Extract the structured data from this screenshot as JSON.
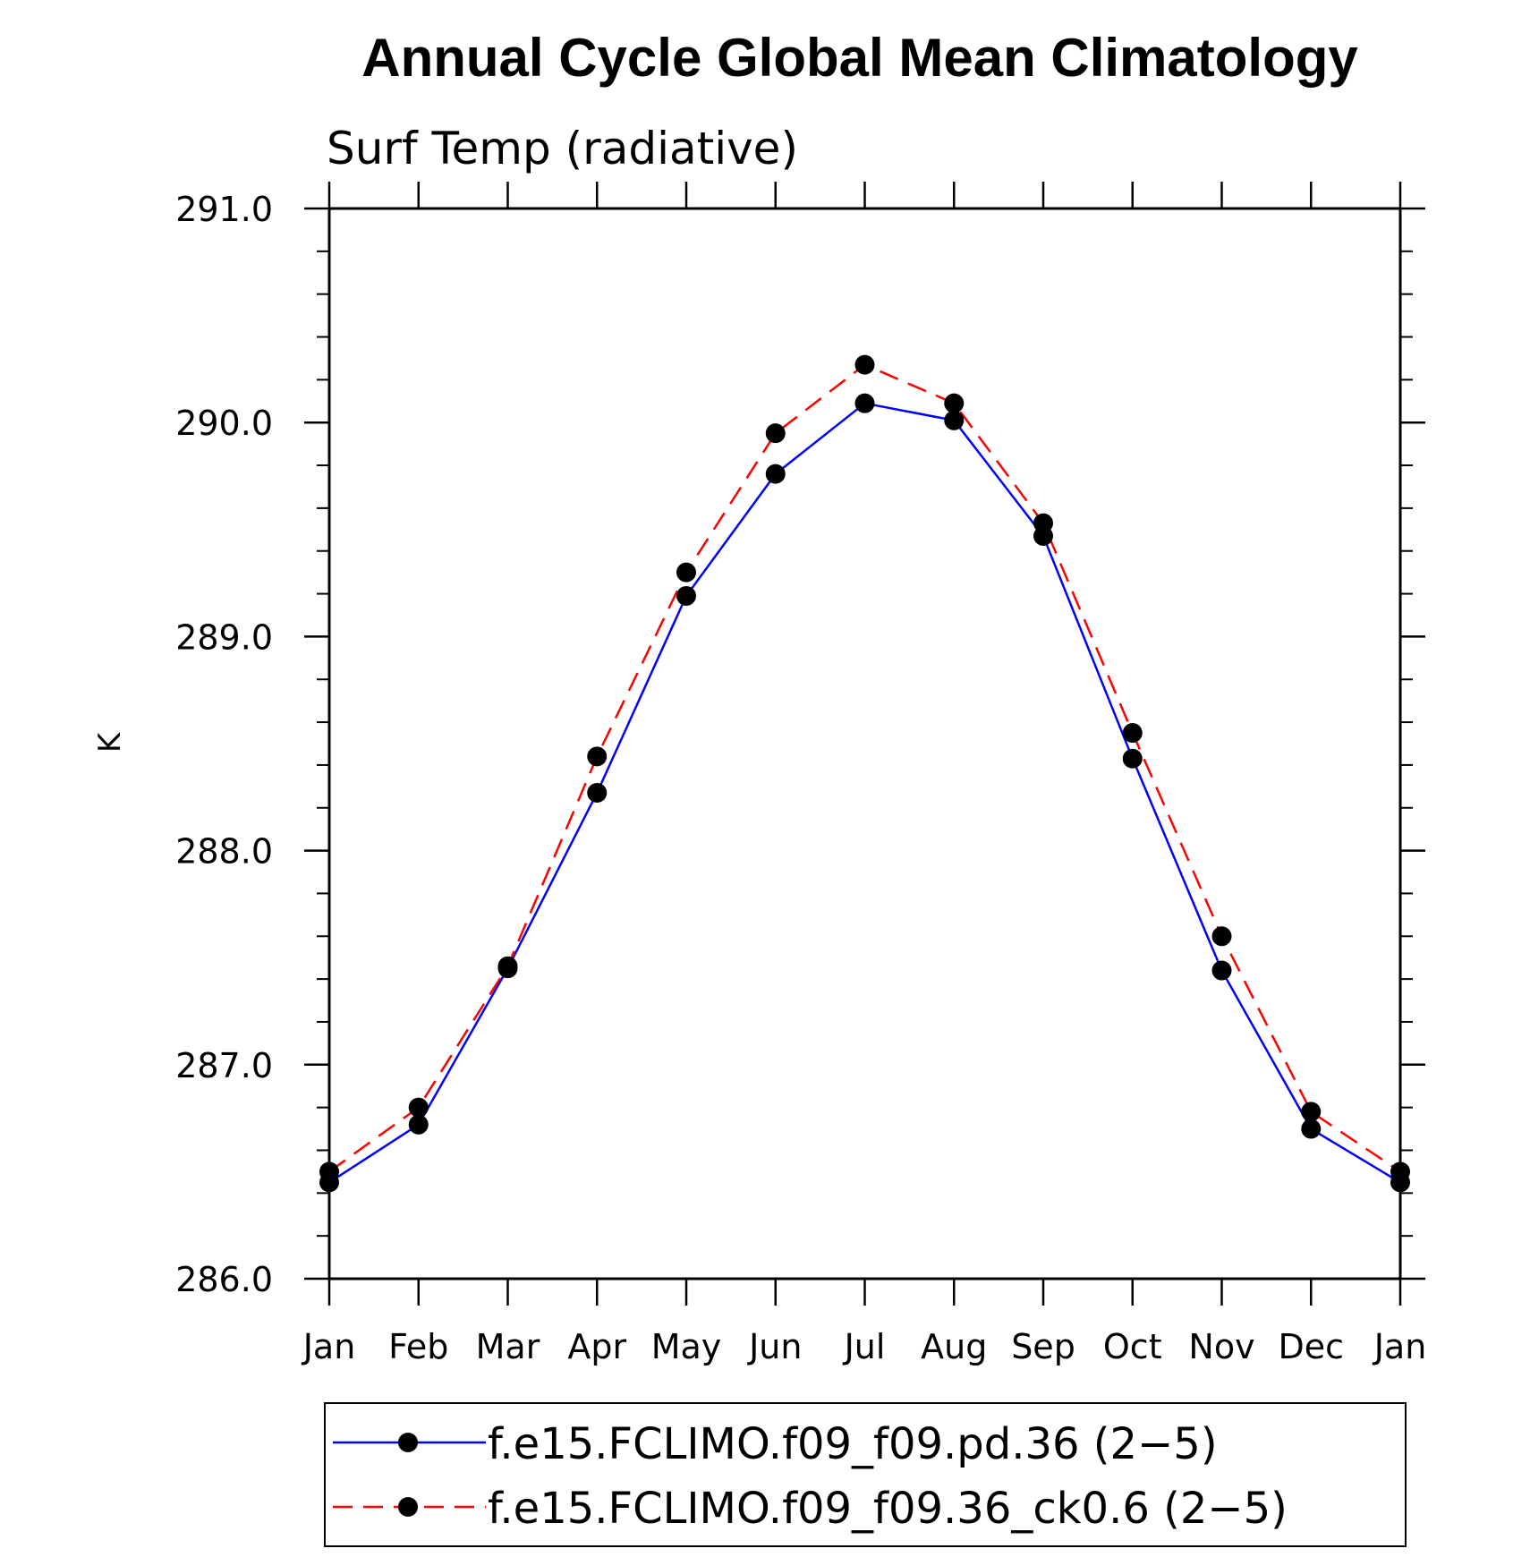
{
  "chart_data": {
    "type": "line",
    "title": "Annual Cycle Global Mean Climatology",
    "subtitle": "Surf Temp (radiative)",
    "xlabel": "",
    "ylabel": "K",
    "categories": [
      "Jan",
      "Feb",
      "Mar",
      "Apr",
      "May",
      "Jun",
      "Jul",
      "Aug",
      "Sep",
      "Oct",
      "Nov",
      "Dec",
      "Jan"
    ],
    "ylim": [
      286.0,
      291.0
    ],
    "yticks": [
      "286.0",
      "287.0",
      "288.0",
      "289.0",
      "290.0",
      "291.0"
    ],
    "y_minor_step": 0.2,
    "series": [
      {
        "name": "f.e15.FCLIMO.f09_f09.pd.36 (2−5)",
        "color": "#0000ff",
        "dashed": false,
        "values": [
          286.45,
          286.72,
          287.45,
          288.27,
          289.19,
          289.76,
          290.09,
          290.01,
          289.47,
          288.43,
          287.44,
          286.7,
          286.45
        ]
      },
      {
        "name": "f.e15.FCLIMO.f09_f09.36_ck0.6 (2−5)",
        "color": "#ff0000",
        "dashed": true,
        "values": [
          286.5,
          286.8,
          287.46,
          288.44,
          289.3,
          289.95,
          290.27,
          290.09,
          289.53,
          288.55,
          287.6,
          286.78,
          286.5
        ]
      }
    ],
    "legend_position": "bottom"
  }
}
